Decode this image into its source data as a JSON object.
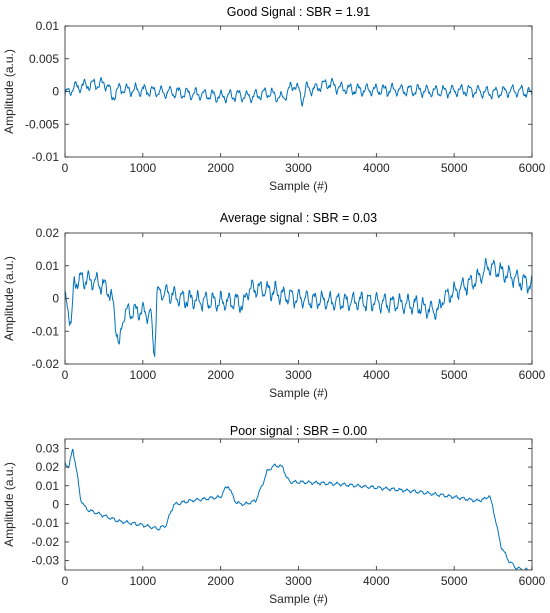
{
  "colors": {
    "signal": "#0072BD",
    "axis": "#262626",
    "background": "#ffffff"
  },
  "chart_data": [
    {
      "type": "line",
      "title": "Good Signal : SBR = 1.91",
      "xlabel": "Sample (#)",
      "ylabel": "Amplitude (a.u.)",
      "xlim": [
        0,
        6000
      ],
      "ylim": [
        -0.01,
        0.01
      ],
      "xticks": [
        0,
        1000,
        2000,
        3000,
        4000,
        5000,
        6000
      ],
      "xtick_labels": [
        "0",
        "1000",
        "2000",
        "3000",
        "4000",
        "5000",
        "6000"
      ],
      "yticks": [
        0.01,
        0.005,
        0,
        -0.005,
        -0.01
      ],
      "ytick_labels": [
        "0.01",
        "0.005",
        "0",
        "-0.005",
        "-0.01"
      ],
      "grid": false,
      "series": [
        {
          "oscillation_amplitude": 0.0007,
          "oscillation_period": 110,
          "x": [
            0,
            100,
            200,
            300,
            400,
            500,
            550,
            600,
            700,
            800,
            1000,
            1200,
            1500,
            1800,
            2000,
            2200,
            2400,
            2600,
            2700,
            2800,
            2900,
            2950,
            3000,
            3050,
            3100,
            3200,
            3300,
            3400,
            3500,
            3700,
            4000,
            4300,
            4600,
            4900,
            5100,
            5300,
            5500,
            5700,
            5900,
            6000
          ],
          "values": [
            -0.0005,
            0.0005,
            0.0008,
            0.001,
            0.0011,
            0.0012,
            0.001,
            -0.001,
            0.0004,
            0.0003,
            0.0002,
            -0.0001,
            -0.0002,
            -0.0005,
            -0.0008,
            -0.0006,
            -0.0008,
            -0.0002,
            -0.0006,
            -0.001,
            0.0005,
            0.0012,
            0.0002,
            -0.0015,
            0.0005,
            0.0003,
            0.001,
            0.0012,
            0.0006,
            0.0003,
            0.0002,
            0.0002,
            0.0001,
            0.0,
            0.0002,
            0.0,
            -0.0002,
            0.0001,
            0.0,
            -0.0004
          ]
        }
      ]
    },
    {
      "type": "line",
      "title": "Average signal : SBR = 0.03",
      "xlabel": "Sample (#)",
      "ylabel": "Amplitude (a.u.)",
      "xlim": [
        0,
        6000
      ],
      "ylim": [
        -0.02,
        0.02
      ],
      "xticks": [
        0,
        1000,
        2000,
        3000,
        4000,
        5000,
        6000
      ],
      "xtick_labels": [
        "0",
        "1000",
        "2000",
        "3000",
        "4000",
        "5000",
        "6000"
      ],
      "yticks": [
        0.02,
        0.01,
        0,
        -0.01,
        -0.02
      ],
      "ytick_labels": [
        "0.02",
        "0.01",
        "0",
        "-0.01",
        "-0.02"
      ],
      "grid": false,
      "series": [
        {
          "oscillation_amplitude": 0.0022,
          "oscillation_period": 100,
          "x": [
            0,
            50,
            80,
            120,
            200,
            400,
            550,
            620,
            700,
            720,
            760,
            1000,
            1100,
            1150,
            1180,
            1250,
            1500,
            1800,
            2000,
            2200,
            2300,
            2350,
            2500,
            2700,
            2800,
            3000,
            3500,
            4000,
            4500,
            4800,
            4850,
            5000,
            5300,
            5450,
            5600,
            5800,
            6000
          ],
          "values": [
            0.0,
            -0.004,
            -0.008,
            0.005,
            0.006,
            0.005,
            0.003,
            -0.002,
            -0.016,
            -0.01,
            -0.004,
            -0.004,
            -0.005,
            -0.017,
            0.001,
            0.002,
            0.0,
            -0.001,
            -0.001,
            -0.001,
            -0.002,
            0.003,
            0.003,
            0.002,
            0.001,
            0.0,
            -0.001,
            -0.001,
            -0.002,
            -0.004,
            0.0,
            0.002,
            0.006,
            0.01,
            0.008,
            0.006,
            0.004
          ]
        }
      ]
    },
    {
      "type": "line",
      "title": "Poor signal : SBR = 0.00",
      "xlabel": "Sample (#)",
      "ylabel": "Amplitude (a.u.)",
      "xlim": [
        0,
        6000
      ],
      "ylim": [
        -0.035,
        0.035
      ],
      "xticks": [
        0,
        1000,
        2000,
        3000,
        4000,
        5000,
        6000
      ],
      "xtick_labels": [
        "0",
        "1000",
        "2000",
        "3000",
        "4000",
        "5000",
        "6000"
      ],
      "yticks": [
        0.03,
        0.02,
        0.01,
        0,
        -0.01,
        -0.02,
        -0.03
      ],
      "ytick_labels": [
        "0.03",
        "0.02",
        "0.01",
        "0",
        "-0.01",
        "-0.02",
        "-0.03"
      ],
      "grid": false,
      "series": [
        {
          "oscillation_amplitude": 0.0007,
          "oscillation_period": 90,
          "x": [
            0,
            50,
            100,
            150,
            200,
            250,
            300,
            500,
            700,
            1000,
            1200,
            1300,
            1350,
            1400,
            1600,
            1800,
            2000,
            2050,
            2100,
            2150,
            2200,
            2300,
            2450,
            2550,
            2600,
            2700,
            2800,
            2850,
            2900,
            3000,
            3500,
            4000,
            4500,
            5000,
            5300,
            5400,
            5450,
            5500,
            5550,
            5600,
            5700,
            5800,
            5900,
            6000
          ],
          "values": [
            0.022,
            0.02,
            0.03,
            0.018,
            0.003,
            -0.001,
            -0.003,
            -0.006,
            -0.009,
            -0.011,
            -0.013,
            -0.011,
            -0.005,
            0.0,
            0.002,
            0.003,
            0.004,
            0.008,
            0.01,
            0.005,
            0.001,
            0.0,
            0.002,
            0.012,
            0.018,
            0.021,
            0.02,
            0.014,
            0.012,
            0.012,
            0.011,
            0.009,
            0.007,
            0.004,
            0.002,
            0.003,
            0.005,
            -0.002,
            -0.012,
            -0.022,
            -0.03,
            -0.034,
            -0.035,
            -0.035
          ]
        }
      ]
    }
  ]
}
